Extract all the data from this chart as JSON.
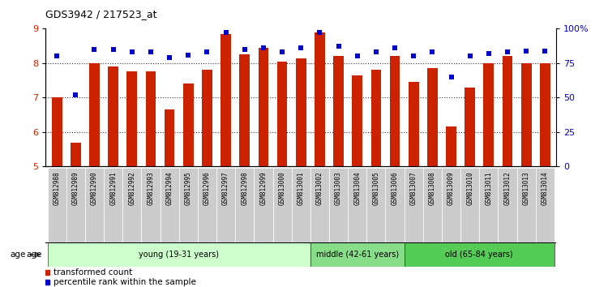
{
  "title": "GDS3942 / 217523_at",
  "samples": [
    "GSM812988",
    "GSM812989",
    "GSM812990",
    "GSM812991",
    "GSM812992",
    "GSM812993",
    "GSM812994",
    "GSM812995",
    "GSM812996",
    "GSM812997",
    "GSM812998",
    "GSM812999",
    "GSM813000",
    "GSM813001",
    "GSM813002",
    "GSM813003",
    "GSM813004",
    "GSM813005",
    "GSM813006",
    "GSM813007",
    "GSM813008",
    "GSM813009",
    "GSM813010",
    "GSM813011",
    "GSM813012",
    "GSM813013",
    "GSM813014"
  ],
  "bar_values": [
    7.0,
    5.7,
    8.0,
    7.9,
    7.75,
    7.75,
    6.65,
    7.4,
    7.8,
    8.85,
    8.25,
    8.45,
    8.05,
    8.15,
    8.9,
    8.2,
    7.65,
    7.8,
    8.2,
    7.45,
    7.85,
    6.15,
    7.3,
    8.0,
    8.2,
    8.0,
    8.0
  ],
  "dot_values": [
    80,
    52,
    85,
    85,
    83,
    83,
    79,
    81,
    83,
    97,
    85,
    86,
    83,
    86,
    97,
    87,
    80,
    83,
    86,
    80,
    83,
    65,
    80,
    82,
    83,
    84,
    84
  ],
  "bar_color": "#cc2200",
  "dot_color": "#0000cc",
  "ylim_left": [
    5,
    9
  ],
  "ylim_right": [
    0,
    100
  ],
  "yticks_left": [
    5,
    6,
    7,
    8,
    9
  ],
  "yticks_right": [
    0,
    25,
    50,
    75,
    100
  ],
  "ytick_labels_right": [
    "0",
    "25",
    "50",
    "75",
    "100%"
  ],
  "groups": [
    {
      "label": "young (19-31 years)",
      "start": 0,
      "end": 14,
      "color": "#ccffcc"
    },
    {
      "label": "middle (42-61 years)",
      "start": 14,
      "end": 19,
      "color": "#88dd88"
    },
    {
      "label": "old (65-84 years)",
      "start": 19,
      "end": 27,
      "color": "#55cc55"
    }
  ],
  "age_label": "age",
  "legend_items": [
    {
      "label": "transformed count",
      "color": "#cc2200"
    },
    {
      "label": "percentile rank within the sample",
      "color": "#0000cc"
    }
  ],
  "bar_bottom": 5,
  "background_color": "#ffffff",
  "tick_area_bg": "#cccccc",
  "gridline_color": "#000000",
  "gridlines": [
    6,
    7,
    8
  ]
}
